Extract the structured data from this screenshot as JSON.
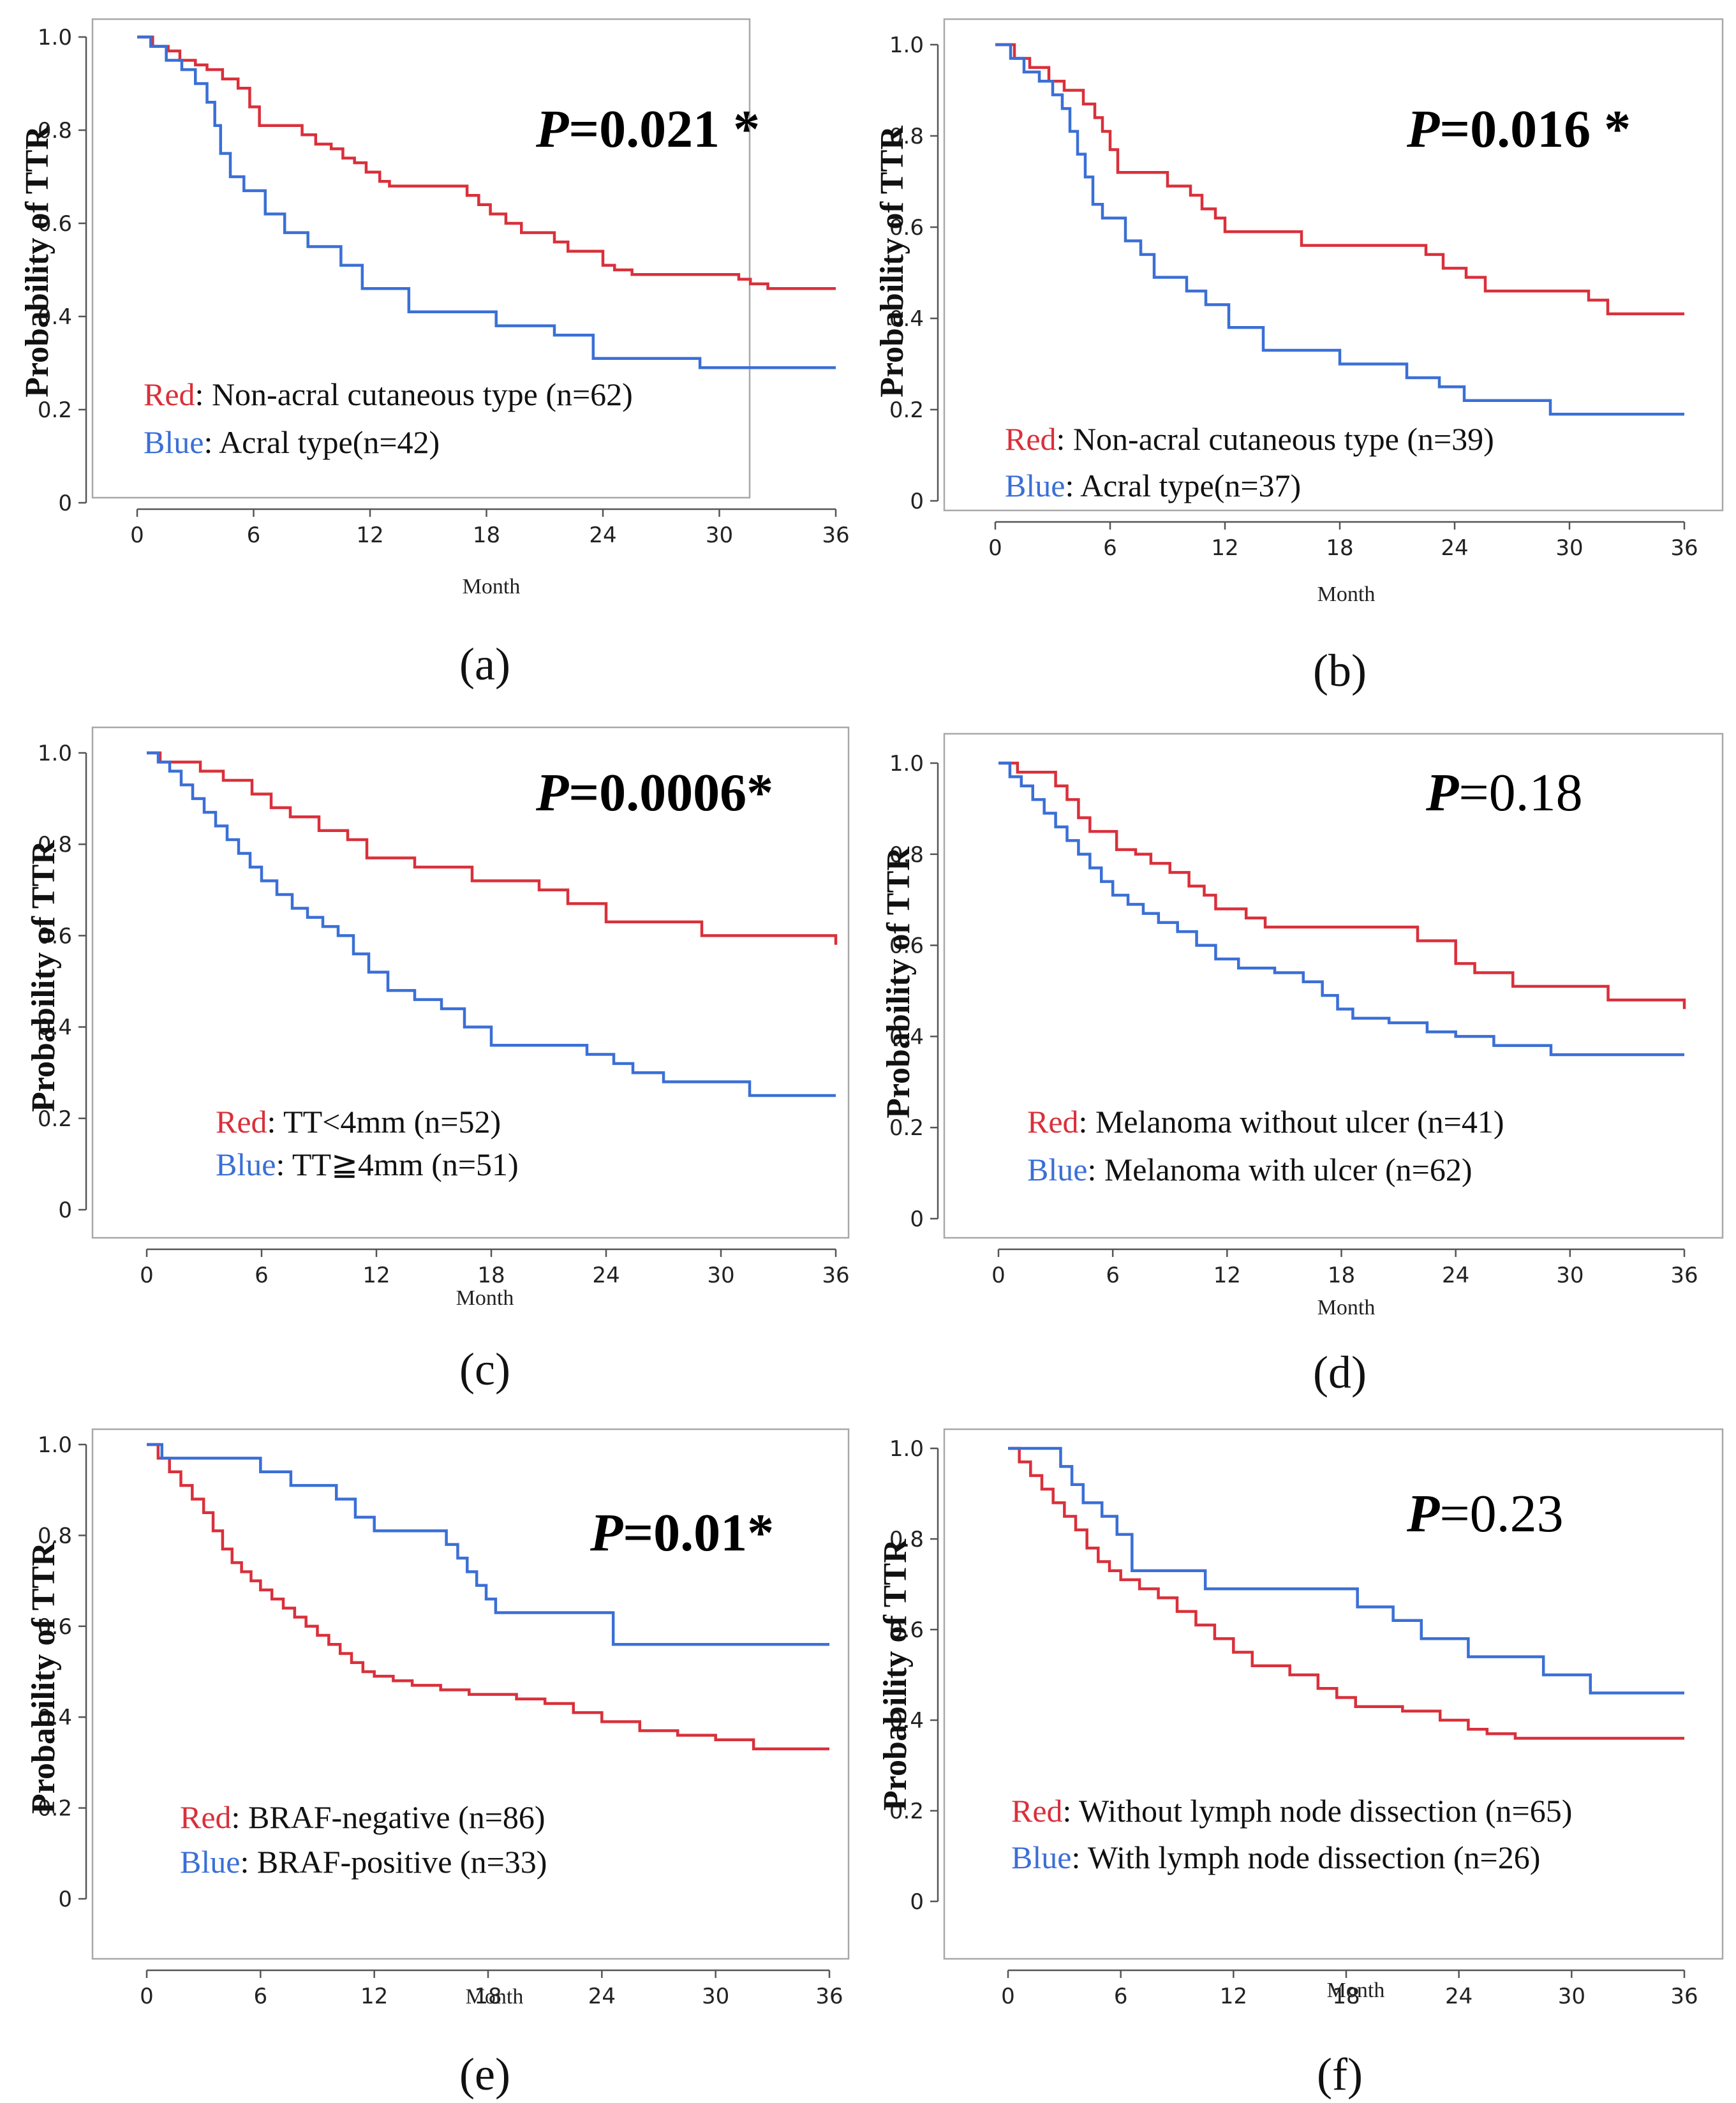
{
  "colors": {
    "red": "#d9303b",
    "blue": "#3a6fd6"
  },
  "chart_data": [
    {
      "type": "line",
      "label": "(a)",
      "x_label": "Month",
      "y_label": "Probability of TTR",
      "xlim": [
        0,
        36
      ],
      "ylim": [
        0,
        1.0
      ],
      "x_ticks": [
        "0",
        "6",
        "12",
        "18",
        "24",
        "30",
        "36"
      ],
      "y_ticks": [
        "0",
        "0.2",
        "0.4",
        "0.6",
        "0.8",
        "1.0"
      ],
      "p_prefix": "P",
      "p_value": "=0.021 *",
      "p_bold": true,
      "series": [
        {
          "name": "Non-acral cutaneous type",
          "color_name": "Red",
          "legend": ": Non-acral cutaneous type (n=62)",
          "color": "#d9303b",
          "x": [
            0,
            0.8,
            1.6,
            2.2,
            3,
            3.6,
            4.4,
            5.2,
            5.8,
            6.3,
            8.5,
            9.2,
            10,
            10.6,
            11.2,
            11.8,
            12.5,
            13,
            17,
            17.6,
            18.2,
            19,
            19.8,
            21.5,
            22.2,
            24,
            24.6,
            25.5,
            31,
            31.6,
            32.5,
            36
          ],
          "y": [
            1.0,
            0.98,
            0.97,
            0.95,
            0.94,
            0.93,
            0.91,
            0.89,
            0.85,
            0.81,
            0.79,
            0.77,
            0.76,
            0.74,
            0.73,
            0.71,
            0.69,
            0.68,
            0.66,
            0.64,
            0.62,
            0.6,
            0.58,
            0.56,
            0.54,
            0.51,
            0.5,
            0.49,
            0.48,
            0.47,
            0.46,
            0.46
          ]
        },
        {
          "name": "Acral type",
          "color_name": "Blue",
          "legend": ": Acral type(n=42)",
          "color": "#3a6fd6",
          "x": [
            0,
            0.7,
            1.5,
            2.3,
            3,
            3.6,
            4,
            4.3,
            4.8,
            5.5,
            6.6,
            7.6,
            8.8,
            10.5,
            11.6,
            14,
            18.5,
            21.5,
            23.5,
            29,
            36
          ],
          "y": [
            1.0,
            0.98,
            0.95,
            0.93,
            0.9,
            0.86,
            0.81,
            0.75,
            0.7,
            0.67,
            0.62,
            0.58,
            0.55,
            0.51,
            0.46,
            0.41,
            0.38,
            0.36,
            0.31,
            0.29,
            0.29
          ]
        }
      ]
    },
    {
      "type": "line",
      "label": "(b)",
      "x_label": "Month",
      "y_label": "Probability of TTR",
      "xlim": [
        0,
        36
      ],
      "ylim": [
        0,
        1.0
      ],
      "x_ticks": [
        "0",
        "6",
        "12",
        "18",
        "24",
        "30",
        "36"
      ],
      "y_ticks": [
        "0",
        "0.2",
        "0.4",
        "0.6",
        "0.8",
        "1.0"
      ],
      "p_prefix": "P",
      "p_value": "=0.016 *",
      "p_bold": true,
      "series": [
        {
          "name": "Non-acral cutaneous type",
          "color_name": "Red",
          "legend": ": Non-acral cutaneous type (n=39)",
          "color": "#d9303b",
          "x": [
            0,
            1,
            1.8,
            2.8,
            3.6,
            4.6,
            5.2,
            5.6,
            6,
            6.4,
            9,
            10.2,
            10.8,
            11.5,
            12,
            16,
            22.5,
            23.4,
            24.6,
            25.6,
            31,
            32,
            36
          ],
          "y": [
            1.0,
            0.97,
            0.95,
            0.92,
            0.9,
            0.87,
            0.84,
            0.81,
            0.77,
            0.72,
            0.69,
            0.67,
            0.64,
            0.62,
            0.59,
            0.56,
            0.54,
            0.51,
            0.49,
            0.46,
            0.44,
            0.41,
            0.41
          ]
        },
        {
          "name": "Acral type",
          "color_name": "Blue",
          "legend": ": Acral type(n=37)",
          "color": "#3a6fd6",
          "x": [
            0,
            0.8,
            1.5,
            2.3,
            3,
            3.5,
            3.9,
            4.3,
            4.7,
            5.1,
            5.6,
            6.8,
            7.6,
            8.3,
            10,
            11,
            12.2,
            14,
            18,
            21.5,
            23.2,
            24.5,
            29,
            36
          ],
          "y": [
            1.0,
            0.97,
            0.94,
            0.92,
            0.89,
            0.86,
            0.81,
            0.76,
            0.71,
            0.65,
            0.62,
            0.57,
            0.54,
            0.49,
            0.46,
            0.43,
            0.38,
            0.33,
            0.3,
            0.27,
            0.25,
            0.22,
            0.19,
            0.19
          ]
        }
      ]
    },
    {
      "type": "line",
      "label": "(c)",
      "x_label": "Month",
      "y_label": "Probability of TTR",
      "xlim": [
        0,
        36
      ],
      "ylim": [
        0,
        1.0
      ],
      "x_ticks": [
        "0",
        "6",
        "12",
        "18",
        "24",
        "30",
        "36"
      ],
      "y_ticks": [
        "0",
        "0.2",
        "0.4",
        "0.6",
        "0.8",
        "1.0"
      ],
      "p_prefix": "P",
      "p_value": "=0.0006*",
      "p_bold": true,
      "series": [
        {
          "name": "TT<4mm",
          "color_name": "Red",
          "legend": ": TT<4mm  (n=52)",
          "color": "#d9303b",
          "x": [
            0,
            0.7,
            1.4,
            2.8,
            4,
            5.5,
            6.5,
            7.5,
            9,
            10.5,
            11.5,
            14,
            17,
            20.5,
            22,
            24,
            29,
            36
          ],
          "y": [
            1.0,
            0.98,
            0.98,
            0.96,
            0.94,
            0.91,
            0.88,
            0.86,
            0.83,
            0.81,
            0.77,
            0.75,
            0.72,
            0.7,
            0.67,
            0.63,
            0.6,
            0.58
          ]
        },
        {
          "name": "TT≧4mm",
          "color_name": "Blue",
          "legend": ": TT≧4mm  (n=51)",
          "color": "#3a6fd6",
          "x": [
            0,
            0.6,
            1.2,
            1.8,
            2.4,
            3,
            3.6,
            4.2,
            4.8,
            5.4,
            6,
            6.8,
            7.6,
            8.4,
            9.2,
            10,
            10.8,
            11.6,
            12.6,
            14,
            15.4,
            16.6,
            18,
            23,
            24.4,
            25.4,
            27,
            31.5,
            36
          ],
          "y": [
            1.0,
            0.98,
            0.96,
            0.93,
            0.9,
            0.87,
            0.84,
            0.81,
            0.78,
            0.75,
            0.72,
            0.69,
            0.66,
            0.64,
            0.62,
            0.6,
            0.56,
            0.52,
            0.48,
            0.46,
            0.44,
            0.4,
            0.36,
            0.34,
            0.32,
            0.3,
            0.28,
            0.25,
            0.25
          ]
        }
      ]
    },
    {
      "type": "line",
      "label": "(d)",
      "x_label": "Month",
      "y_label": "Probability of TTR",
      "xlim": [
        0,
        36
      ],
      "ylim": [
        0,
        1.0
      ],
      "x_ticks": [
        "0",
        "6",
        "12",
        "18",
        "24",
        "30",
        "36"
      ],
      "y_ticks": [
        "0",
        "0.2",
        "0.4",
        "0.6",
        "0.8",
        "1.0"
      ],
      "p_prefix": "P",
      "p_value": "=0.18",
      "p_bold": false,
      "series": [
        {
          "name": "Melanoma without ulcer",
          "color_name": "Red",
          "legend": ": Melanoma without ulcer (n=41)",
          "color": "#d9303b",
          "x": [
            0,
            1,
            1.6,
            3,
            3.6,
            4.2,
            4.8,
            6.2,
            7.2,
            8,
            9,
            10,
            10.8,
            11.4,
            13,
            14,
            22,
            24,
            25,
            27,
            32,
            36
          ],
          "y": [
            1.0,
            0.98,
            0.98,
            0.95,
            0.92,
            0.88,
            0.85,
            0.81,
            0.8,
            0.78,
            0.76,
            0.73,
            0.71,
            0.68,
            0.66,
            0.64,
            0.61,
            0.56,
            0.54,
            0.51,
            0.48,
            0.46
          ]
        },
        {
          "name": "Melanoma with ulcer",
          "color_name": "Blue",
          "legend": ": Melanoma with ulcer (n=62)",
          "color": "#3a6fd6",
          "x": [
            0,
            0.6,
            1.2,
            1.8,
            2.4,
            3,
            3.6,
            4.2,
            4.8,
            5.4,
            6,
            6.8,
            7.6,
            8.4,
            9.4,
            10.4,
            11.4,
            12.6,
            14.5,
            16,
            17,
            17.8,
            18.6,
            20.5,
            22.5,
            24,
            26,
            29,
            36
          ],
          "y": [
            1.0,
            0.97,
            0.95,
            0.92,
            0.89,
            0.86,
            0.83,
            0.8,
            0.77,
            0.74,
            0.71,
            0.69,
            0.67,
            0.65,
            0.63,
            0.6,
            0.57,
            0.55,
            0.54,
            0.52,
            0.49,
            0.46,
            0.44,
            0.43,
            0.41,
            0.4,
            0.38,
            0.36,
            0.36
          ]
        }
      ]
    },
    {
      "type": "line",
      "label": "(e)",
      "x_label": "Month",
      "y_label": "Probability of TTR",
      "xlim": [
        0,
        36
      ],
      "ylim": [
        0,
        1.0
      ],
      "x_ticks": [
        "0",
        "6",
        "12",
        "18",
        "24",
        "30",
        "36"
      ],
      "y_ticks": [
        "0",
        "0.2",
        "0.4",
        "0.6",
        "0.8",
        "1.0"
      ],
      "p_prefix": "P",
      "p_value": "=0.01*",
      "p_bold": true,
      "series": [
        {
          "name": "BRAF-negative",
          "color_name": "Red",
          "legend": ": BRAF-negative   (n=86)",
          "color": "#d9303b",
          "x": [
            0,
            0.6,
            1.2,
            1.8,
            2.4,
            3,
            3.5,
            4,
            4.5,
            5,
            5.5,
            6,
            6.6,
            7.2,
            7.8,
            8.4,
            9,
            9.6,
            10.2,
            10.8,
            11.4,
            12,
            13,
            14,
            15.5,
            17,
            19.5,
            21,
            22.5,
            24,
            26,
            28,
            30,
            32,
            36
          ],
          "y": [
            1.0,
            0.97,
            0.94,
            0.91,
            0.88,
            0.85,
            0.81,
            0.77,
            0.74,
            0.72,
            0.7,
            0.68,
            0.66,
            0.64,
            0.62,
            0.6,
            0.58,
            0.56,
            0.54,
            0.52,
            0.5,
            0.49,
            0.48,
            0.47,
            0.46,
            0.45,
            0.44,
            0.43,
            0.41,
            0.39,
            0.37,
            0.36,
            0.35,
            0.33,
            0.33
          ]
        },
        {
          "name": "BRAF-positive",
          "color_name": "Blue",
          "legend": ": BRAF-positive  (n=33)",
          "color": "#3a6fd6",
          "x": [
            0,
            0.8,
            6,
            7.6,
            10,
            11,
            12,
            15.8,
            16.4,
            16.9,
            17.4,
            17.9,
            18.4,
            24.6,
            36
          ],
          "y": [
            1.0,
            0.97,
            0.94,
            0.91,
            0.88,
            0.84,
            0.81,
            0.78,
            0.75,
            0.72,
            0.69,
            0.66,
            0.63,
            0.56,
            0.56
          ]
        }
      ]
    },
    {
      "type": "line",
      "label": "(f)",
      "x_label": "Month",
      "y_label": "Probability of TTR",
      "xlim": [
        0,
        36
      ],
      "ylim": [
        0,
        1.0
      ],
      "x_ticks": [
        "0",
        "6",
        "12",
        "18",
        "24",
        "30",
        "36"
      ],
      "y_ticks": [
        "0",
        "0.2",
        "0.4",
        "0.6",
        "0.8",
        "1.0"
      ],
      "p_prefix": "P",
      "p_value": "=0.23",
      "p_bold": false,
      "series": [
        {
          "name": "Without lymph node dissection",
          "color_name": "Red",
          "legend": ": Without lymph node dissection  (n=65)",
          "color": "#d9303b",
          "x": [
            0,
            0.6,
            1.2,
            1.8,
            2.4,
            3,
            3.6,
            4.2,
            4.8,
            5.4,
            6,
            7,
            8,
            9,
            10,
            11,
            12,
            13,
            15,
            16.5,
            17.5,
            18.5,
            21,
            23,
            24.5,
            25.5,
            27,
            36
          ],
          "y": [
            1.0,
            0.97,
            0.94,
            0.91,
            0.88,
            0.85,
            0.82,
            0.78,
            0.75,
            0.73,
            0.71,
            0.69,
            0.67,
            0.64,
            0.61,
            0.58,
            0.55,
            0.52,
            0.5,
            0.47,
            0.45,
            0.43,
            0.42,
            0.4,
            0.38,
            0.37,
            0.36,
            0.36
          ]
        },
        {
          "name": "With lymph node dissection",
          "color_name": "Blue",
          "legend": ": With lymph node dissection (n=26)",
          "color": "#3a6fd6",
          "x": [
            0,
            2.8,
            3.4,
            4,
            5,
            5.8,
            6.6,
            10.5,
            18.6,
            20.5,
            22,
            24.5,
            28.5,
            31,
            36
          ],
          "y": [
            1.0,
            0.96,
            0.92,
            0.88,
            0.85,
            0.81,
            0.73,
            0.69,
            0.65,
            0.62,
            0.58,
            0.54,
            0.5,
            0.46,
            0.46
          ]
        }
      ]
    }
  ]
}
